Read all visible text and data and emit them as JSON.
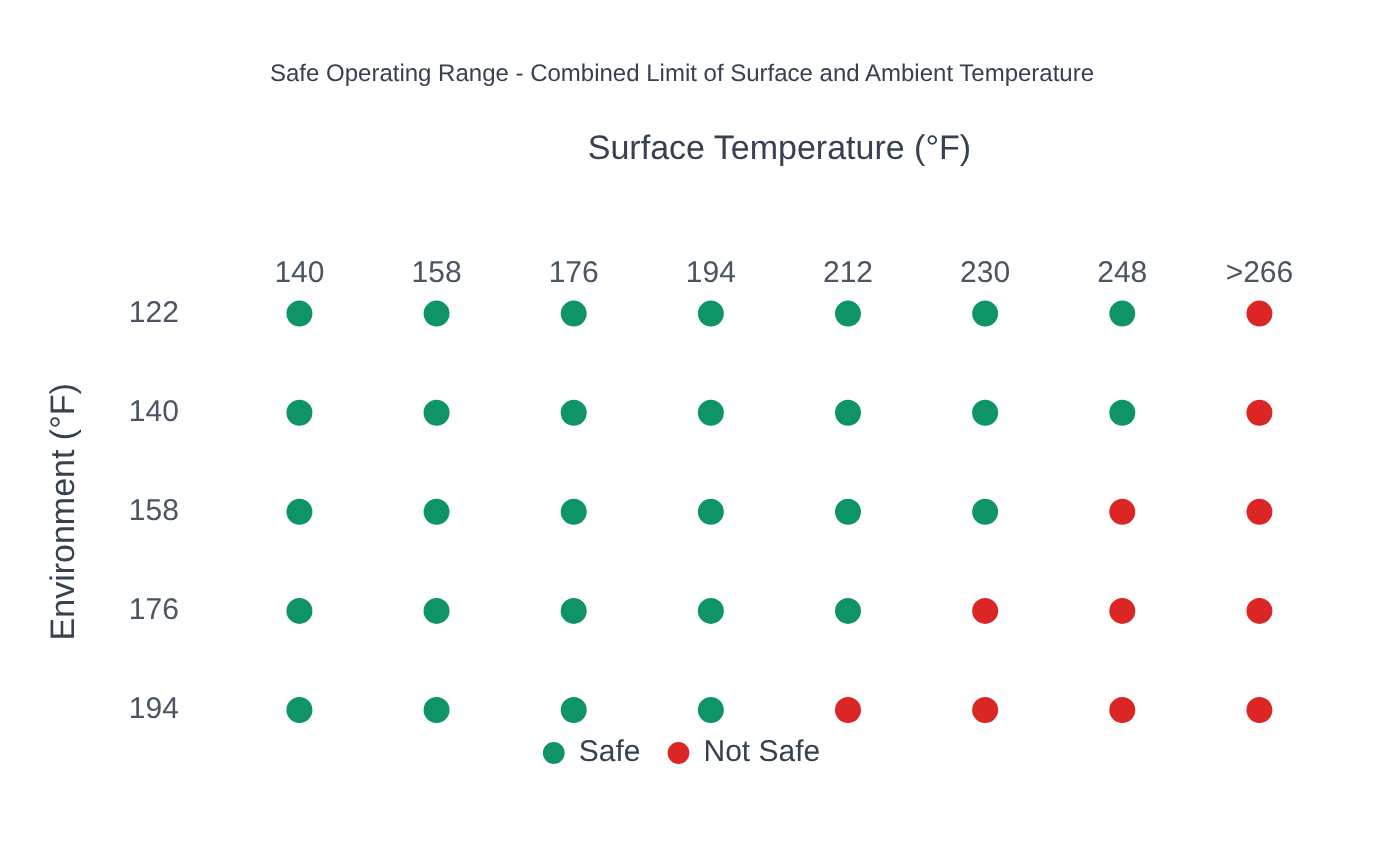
{
  "chart_data": {
    "type": "scatter",
    "title": "Safe Operating Range - Combined Limit of Surface and Ambient Temperature",
    "xlabel": "Surface Temperature (°F)",
    "ylabel": "Environment (°F)",
    "categories": [
      "140",
      "158",
      "176",
      "194",
      "212",
      "230",
      "248",
      ">266"
    ],
    "ylim": [
      194,
      122
    ],
    "yticks": [
      122,
      140,
      158,
      176,
      194
    ],
    "legend": "bottom",
    "marker": "circle",
    "series": [
      {
        "name": "Safe",
        "color": "#0e9467",
        "x": [
          "140",
          "158",
          "176",
          "194",
          "212",
          "230",
          "248",
          "140",
          "158",
          "176",
          "194",
          "212",
          "230",
          "248",
          "140",
          "158",
          "176",
          "194",
          "212",
          "230",
          "140",
          "158",
          "176",
          "194",
          "212",
          "140",
          "158",
          "176",
          "194"
        ],
        "values": [
          122,
          122,
          122,
          122,
          122,
          122,
          122,
          140,
          140,
          140,
          140,
          140,
          140,
          140,
          158,
          158,
          158,
          158,
          158,
          158,
          176,
          176,
          176,
          176,
          176,
          194,
          194,
          194,
          194
        ]
      },
      {
        "name": "Not Safe",
        "color": "#dc2626",
        "x": [
          ">266",
          ">266",
          "248",
          ">266",
          "230",
          "248",
          ">266",
          "212",
          "230",
          "248",
          ">266"
        ],
        "values": [
          122,
          140,
          158,
          158,
          176,
          176,
          176,
          194,
          194,
          194,
          194
        ]
      }
    ]
  }
}
